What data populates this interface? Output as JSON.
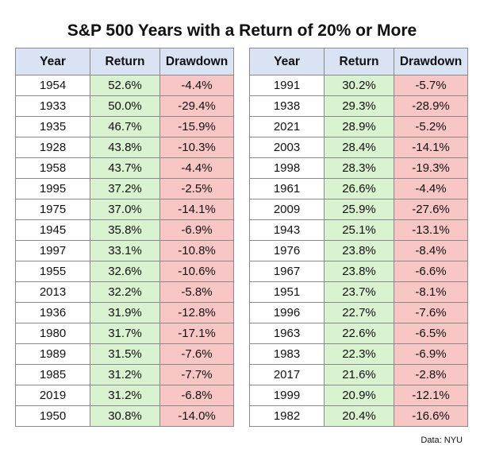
{
  "title": "S&P 500 Years with a Return of 20% or More",
  "source": "Data: NYU",
  "colors": {
    "header_bg": "#dae3f3",
    "return_bg": "#d9f2d0",
    "drawdown_bg": "#f9c6c6",
    "border": "#8a8a8a"
  },
  "chart_data": {
    "type": "table",
    "title": "S&P 500 Years with a Return of 20% or More",
    "columns": [
      "Year",
      "Return",
      "Drawdown"
    ],
    "tables": [
      {
        "rows": [
          [
            "1954",
            "52.6%",
            "-4.4%"
          ],
          [
            "1933",
            "50.0%",
            "-29.4%"
          ],
          [
            "1935",
            "46.7%",
            "-15.9%"
          ],
          [
            "1928",
            "43.8%",
            "-10.3%"
          ],
          [
            "1958",
            "43.7%",
            "-4.4%"
          ],
          [
            "1995",
            "37.2%",
            "-2.5%"
          ],
          [
            "1975",
            "37.0%",
            "-14.1%"
          ],
          [
            "1945",
            "35.8%",
            "-6.9%"
          ],
          [
            "1997",
            "33.1%",
            "-10.8%"
          ],
          [
            "1955",
            "32.6%",
            "-10.6%"
          ],
          [
            "2013",
            "32.2%",
            "-5.8%"
          ],
          [
            "1936",
            "31.9%",
            "-12.8%"
          ],
          [
            "1980",
            "31.7%",
            "-17.1%"
          ],
          [
            "1989",
            "31.5%",
            "-7.6%"
          ],
          [
            "1985",
            "31.2%",
            "-7.7%"
          ],
          [
            "2019",
            "31.2%",
            "-6.8%"
          ],
          [
            "1950",
            "30.8%",
            "-14.0%"
          ]
        ]
      },
      {
        "rows": [
          [
            "1991",
            "30.2%",
            "-5.7%"
          ],
          [
            "1938",
            "29.3%",
            "-28.9%"
          ],
          [
            "2021",
            "28.9%",
            "-5.2%"
          ],
          [
            "2003",
            "28.4%",
            "-14.1%"
          ],
          [
            "1998",
            "28.3%",
            "-19.3%"
          ],
          [
            "1961",
            "26.6%",
            "-4.4%"
          ],
          [
            "2009",
            "25.9%",
            "-27.6%"
          ],
          [
            "1943",
            "25.1%",
            "-13.1%"
          ],
          [
            "1976",
            "23.8%",
            "-8.4%"
          ],
          [
            "1967",
            "23.8%",
            "-6.6%"
          ],
          [
            "1951",
            "23.7%",
            "-8.1%"
          ],
          [
            "1996",
            "22.7%",
            "-7.6%"
          ],
          [
            "1963",
            "22.6%",
            "-6.5%"
          ],
          [
            "1983",
            "22.3%",
            "-6.9%"
          ],
          [
            "2017",
            "21.6%",
            "-2.8%"
          ],
          [
            "1999",
            "20.9%",
            "-12.1%"
          ],
          [
            "1982",
            "20.4%",
            "-16.6%"
          ]
        ]
      }
    ]
  }
}
